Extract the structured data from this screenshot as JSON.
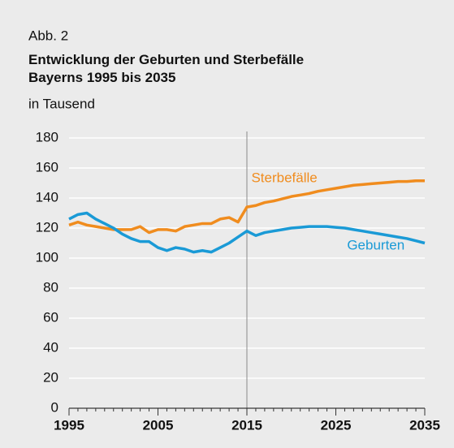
{
  "chart_data": {
    "type": "line",
    "label": "Abb. 2",
    "title": "Entwicklung der Geburten und Sterbefälle Bayerns 1995 bis 2035",
    "subtitle": "in Tausend",
    "x": [
      1995,
      1996,
      1997,
      1998,
      1999,
      2000,
      2001,
      2002,
      2003,
      2004,
      2005,
      2006,
      2007,
      2008,
      2009,
      2010,
      2011,
      2012,
      2013,
      2014,
      2015,
      2016,
      2017,
      2018,
      2019,
      2020,
      2021,
      2022,
      2023,
      2024,
      2025,
      2026,
      2027,
      2028,
      2029,
      2030,
      2031,
      2032,
      2033,
      2034,
      2035
    ],
    "series": [
      {
        "name": "Sterbefälle",
        "color": "#f08c1e",
        "values": [
          122,
          124,
          122,
          121,
          120,
          119,
          119,
          119,
          121,
          117,
          119,
          119,
          118,
          121,
          122,
          123,
          123,
          126,
          127,
          124,
          134,
          135,
          137,
          138,
          139.5,
          141,
          142,
          143,
          144.5,
          145.5,
          146.5,
          147.5,
          148.5,
          149,
          149.5,
          150,
          150.5,
          151,
          151,
          151.5,
          151.5
        ]
      },
      {
        "name": "Geburten",
        "color": "#1a9ad6",
        "values": [
          126,
          129,
          130,
          126,
          123,
          120,
          116,
          113,
          111,
          111,
          107,
          105,
          107,
          106,
          104,
          105,
          104,
          107,
          110,
          114,
          118,
          115,
          117,
          118,
          119,
          120,
          120.5,
          121,
          121,
          121,
          120.5,
          120,
          119,
          118,
          117,
          116,
          115,
          114,
          113,
          111.5,
          110
        ]
      }
    ],
    "xlim": [
      1995,
      2035
    ],
    "xticks": [
      1995,
      2005,
      2015,
      2025,
      2035
    ],
    "ylim": [
      0,
      180
    ],
    "yticks": [
      0,
      20,
      40,
      60,
      80,
      100,
      120,
      140,
      160,
      180
    ],
    "grid": true,
    "vline": 2015
  }
}
